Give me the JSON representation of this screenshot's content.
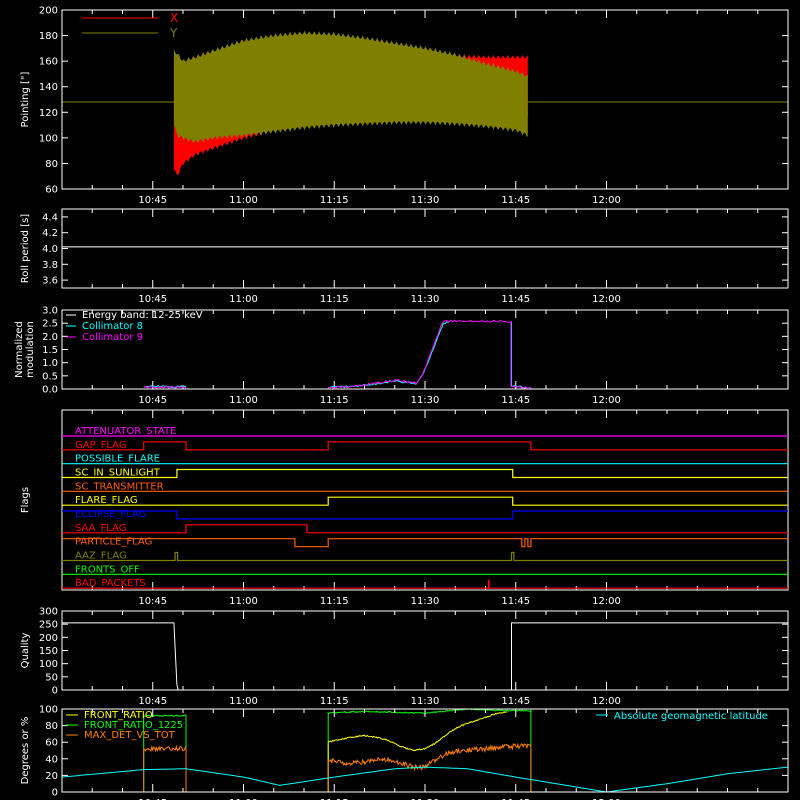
{
  "time_axis": {
    "start_min": 630,
    "end_min": 750,
    "ticks": [
      {
        "min": 645,
        "label": "10:45"
      },
      {
        "min": 660,
        "label": "11:00"
      },
      {
        "min": 675,
        "label": "11:15"
      },
      {
        "min": 690,
        "label": "11:30"
      },
      {
        "min": 705,
        "label": "11:45"
      },
      {
        "min": 720,
        "label": "12:00"
      }
    ]
  },
  "colors": {
    "x": "#ff0000",
    "y": "#808000",
    "cyan": "#00ffff",
    "magenta": "#ff00ff",
    "white": "#ffffff",
    "green": "#00ff00",
    "yellow": "#ffff00",
    "orange": "#ff8000"
  },
  "chart_data": [
    {
      "type": "area",
      "ylabel": "Pointing [\"]",
      "ylim": [
        60,
        200
      ],
      "yticks": [
        60,
        80,
        100,
        120,
        140,
        160,
        180,
        200
      ],
      "legend": [
        {
          "label": "X",
          "color": "#ff0000"
        },
        {
          "label": "Y",
          "color": "#808000"
        }
      ],
      "series": [
        {
          "name": "X",
          "envelope": {
            "t": [
              648.5,
              649,
              650,
              652,
              655,
              660,
              665,
              670,
              675,
              680,
              685,
              690,
              695,
              700,
              705,
              707
            ],
            "upper": [
              160,
              162,
              156,
              158,
              160,
              163,
              165,
              166,
              166,
              166,
              166,
              166,
              166,
              165,
              165,
              165
            ],
            "lower": [
              75,
              68,
              78,
              85,
              90,
              98,
              104,
              110,
              114,
              116,
              117,
              117,
              117,
              116,
              116,
              115
            ]
          }
        },
        {
          "name": "Y",
          "envelope": {
            "t": [
              648.5,
              649,
              650,
              652,
              655,
              660,
              665,
              670,
              675,
              680,
              685,
              690,
              695,
              700,
              705,
              707
            ],
            "upper": [
              170,
              168,
              162,
              165,
              170,
              178,
              182,
              184,
              183,
              180,
              176,
              172,
              167,
              160,
              154,
              150
            ],
            "lower": [
              110,
              100,
              98,
              95,
              98,
              100,
              103,
              106,
              108,
              109,
              110,
              110,
              109,
              107,
              104,
              100
            ]
          }
        }
      ],
      "baseline": 128
    },
    {
      "type": "line",
      "ylabel": "Roll period [s]",
      "ylim": [
        3.5,
        4.5
      ],
      "yticks": [
        3.6,
        3.8,
        4.0,
        4.2,
        4.4
      ],
      "series": [
        {
          "name": "",
          "t": [
            630,
            750
          ],
          "values": [
            4.02,
            4.02
          ]
        }
      ]
    },
    {
      "type": "line",
      "ylabel": "Normalized modulation",
      "ylabel_lines": [
        "Normalized",
        "modulation"
      ],
      "ylim": [
        0,
        3
      ],
      "yticks": [
        0.0,
        0.5,
        1.0,
        1.5,
        2.0,
        2.5,
        3.0
      ],
      "legend": [
        {
          "label": "Energy band: 12-25 keV",
          "color": "#ffffff"
        },
        {
          "label": "Collimator 8",
          "color": "#00ffff"
        },
        {
          "label": "Collimator 9",
          "color": "#ff00ff"
        }
      ],
      "series": [
        {
          "name": "Collimator 8",
          "segments": [
            {
              "t": [
                643.5,
                647,
                650.5
              ],
              "values": [
                0.08,
                0.1,
                0.08
              ]
            },
            {
              "t": [
                674,
                678,
                682,
                685,
                687,
                688.5,
                689.5,
                690.5,
                691.5,
                692.5,
                693,
                694
              ],
              "values": [
                0.05,
                0.1,
                0.2,
                0.3,
                0.25,
                0.2,
                0.5,
                1.0,
                1.6,
                2.2,
                2.5,
                2.55
              ]
            },
            {
              "t": [
                704.3,
                704.3,
                707.5
              ],
              "values": [
                2.55,
                0.1,
                0.05
              ]
            }
          ]
        },
        {
          "name": "Collimator 9",
          "segments": [
            {
              "t": [
                643.5,
                647,
                650.5
              ],
              "values": [
                0.06,
                0.08,
                0.06
              ]
            },
            {
              "t": [
                674,
                678,
                682,
                685,
                687,
                688.5,
                689.5,
                690.5,
                691.5,
                692.5,
                693,
                694,
                704.2,
                704.2,
                707.5
              ],
              "values": [
                0.04,
                0.1,
                0.22,
                0.33,
                0.28,
                0.22,
                0.5,
                1.1,
                1.7,
                2.3,
                2.55,
                2.57,
                2.57,
                0.1,
                0.05
              ]
            }
          ]
        }
      ]
    },
    {
      "type": "table",
      "ylabel": "Flags",
      "flags": [
        {
          "label": "ATTENUATOR_STATE",
          "color": "#ff00ff",
          "t": [
            630,
            750
          ],
          "state": [
            0,
            0
          ]
        },
        {
          "label": "GAP_FLAG",
          "color": "#ff0000",
          "t": [
            630,
            643.5,
            643.5,
            650.5,
            650.5,
            674,
            674,
            707.5,
            707.5,
            750
          ],
          "state": [
            0,
            0,
            1,
            1,
            0,
            0,
            1,
            1,
            0,
            0
          ]
        },
        {
          "label": "POSSIBLE_FLARE",
          "color": "#00ffff",
          "t": [
            630,
            750
          ],
          "state": [
            0,
            0
          ]
        },
        {
          "label": "SC_IN_SUNLIGHT",
          "color": "#ffff00",
          "t": [
            630,
            649,
            649,
            704.5,
            704.5,
            750
          ],
          "state": [
            0,
            0,
            1,
            1,
            0,
            0
          ]
        },
        {
          "label": "SC_TRANSMITTER",
          "color": "#ff6000",
          "t": [
            630,
            750
          ],
          "state": [
            0,
            0
          ]
        },
        {
          "label": "FLARE_FLAG",
          "color": "#ffff00",
          "t": [
            630,
            674,
            674,
            704.5,
            704.5,
            750
          ],
          "state": [
            0,
            0,
            1,
            1,
            0,
            0
          ]
        },
        {
          "label": "ECLIPSE_FLAG",
          "color": "#0000ff",
          "t": [
            630,
            649,
            649,
            704.5,
            704.5,
            750
          ],
          "state": [
            1,
            1,
            0,
            0,
            1,
            1
          ]
        },
        {
          "label": "SAA_FLAG",
          "color": "#ff0000",
          "t": [
            630,
            650.5,
            650.5,
            670.5,
            670.5,
            750
          ],
          "state": [
            0,
            0,
            1,
            1,
            0,
            0
          ]
        },
        {
          "label": "PARTICLE_FLAG",
          "color": "#ff6000",
          "t": [
            630,
            668.5,
            668.5,
            674,
            674,
            706,
            706,
            706.5,
            706.5,
            707,
            707,
            707.5,
            707.5,
            750
          ],
          "state": [
            1,
            1,
            0,
            0,
            1,
            1,
            0,
            0,
            1,
            1,
            0,
            0,
            1,
            1
          ]
        },
        {
          "label": "AAZ_FLAG",
          "color": "#808000",
          "t": [
            630,
            648.7,
            648.7,
            649.1,
            649.1,
            704.3,
            704.3,
            704.7,
            704.7,
            750
          ],
          "state": [
            0,
            0,
            1,
            1,
            0,
            0,
            1,
            1,
            0,
            0
          ]
        },
        {
          "label": "FRONTS_OFF",
          "color": "#00ff00",
          "t": [
            630,
            750
          ],
          "state": [
            0,
            0
          ]
        },
        {
          "label": "BAD_PACKETS",
          "color": "#ff0000",
          "t": [
            630,
            700.5,
            700.5,
            700.6,
            700.6,
            750
          ],
          "state": [
            0,
            0,
            1,
            1,
            0,
            0
          ]
        }
      ]
    },
    {
      "type": "line",
      "ylabel": "Quality",
      "ylim": [
        0,
        300
      ],
      "yticks": [
        0,
        50,
        100,
        150,
        200,
        250,
        300
      ],
      "series": [
        {
          "name": "",
          "t": [
            630,
            648.5,
            649,
            649.2,
            704.3,
            704.3,
            750
          ],
          "values": [
            255,
            255,
            20,
            0,
            0,
            255,
            255
          ]
        }
      ]
    },
    {
      "type": "line",
      "ylabel": "Degrees or %",
      "ylim": [
        0,
        100
      ],
      "yticks": [
        0,
        20,
        40,
        60,
        80,
        100
      ],
      "legend": [
        {
          "label": "FRONT_RATIO",
          "color": "#ffff00"
        },
        {
          "label": "FRONT_RATIO_1225",
          "color": "#00ff00"
        },
        {
          "label": "MAX_DET_VS_TOT",
          "color": "#ff8000"
        },
        {
          "label": "Absolute geomagnetic latitude",
          "color": "#00ffff"
        }
      ],
      "series": [
        {
          "name": "FRONT_RATIO_1225",
          "segments": [
            {
              "t": [
                643.5,
                643.5,
                650.5,
                650.5
              ],
              "values": [
                0,
                92,
                92,
                0
              ]
            },
            {
              "t": [
                674,
                674,
                676,
                680,
                685,
                690,
                693,
                697,
                700,
                703,
                707.5,
                707.5
              ],
              "values": [
                0,
                95,
                96,
                97,
                96,
                95,
                97,
                100,
                99,
                98,
                98,
                0
              ]
            }
          ]
        },
        {
          "name": "FRONT_RATIO",
          "segments": [
            {
              "t": [
                674,
                674,
                675,
                678,
                680,
                682,
                684,
                686,
                688,
                690,
                692,
                694,
                696,
                698,
                700,
                702,
                703.5
              ],
              "values": [
                0,
                60,
                62,
                66,
                68,
                66,
                62,
                55,
                50,
                52,
                60,
                72,
                80,
                85,
                90,
                95,
                96
              ]
            }
          ]
        },
        {
          "name": "MAX_DET_VS_TOT",
          "segments": [
            {
              "t": [
                643.5,
                643.5,
                650.5,
                650.5
              ],
              "values": [
                0,
                52,
                52,
                0
              ]
            },
            {
              "t": [
                674,
                674,
                677,
                680,
                683,
                686,
                688,
                690,
                692,
                694,
                696,
                700,
                704,
                707.5,
                707.5
              ],
              "values": [
                0,
                38,
                35,
                36,
                40,
                35,
                30,
                30,
                40,
                48,
                50,
                52,
                55,
                55,
                0
              ]
            }
          ]
        },
        {
          "name": "Absolute geomagnetic latitude",
          "t": [
            630,
            643.5,
            650.5,
            660,
            666,
            675,
            685,
            690,
            697,
            705,
            715,
            720,
            730,
            740,
            750
          ],
          "values": [
            18,
            27,
            28,
            18,
            8,
            18,
            28,
            30,
            28,
            18,
            6,
            0,
            10,
            22,
            30
          ]
        }
      ]
    }
  ]
}
